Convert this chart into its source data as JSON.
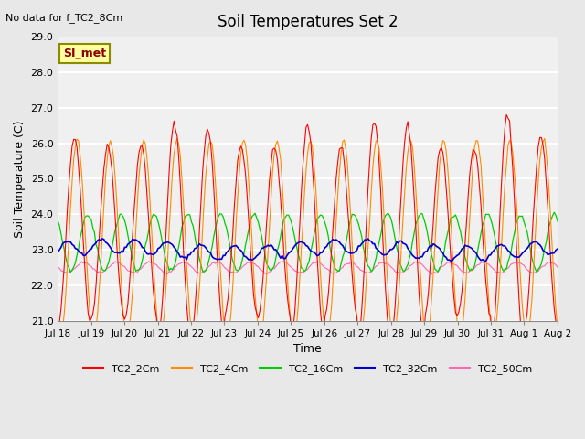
{
  "title": "Soil Temperatures Set 2",
  "subtitle": "No data for f_TC2_8Cm",
  "xlabel": "Time",
  "ylabel": "Soil Temperature (C)",
  "ylim": [
    21.0,
    29.0
  ],
  "yticks": [
    21.0,
    22.0,
    23.0,
    24.0,
    25.0,
    26.0,
    27.0,
    28.0,
    29.0
  ],
  "xtick_labels": [
    "Jul 18",
    "Jul 19",
    "Jul 20",
    "Jul 21",
    "Jul 22",
    "Jul 23",
    "Jul 24",
    "Jul 25",
    "Jul 26",
    "Jul 27",
    "Jul 28",
    "Jul 29",
    "Jul 30",
    "Jul 31",
    "Aug 1",
    "Aug 2"
  ],
  "annotation": "SI_met",
  "annotation_color": "#8B0000",
  "annotation_bg": "#FFFFA0",
  "annotation_border": "#8B8B00",
  "series_colors": {
    "TC2_2Cm": "#FF0000",
    "TC2_4Cm": "#FF8C00",
    "TC2_16Cm": "#00CC00",
    "TC2_32Cm": "#0000CC",
    "TC2_50Cm": "#FF69B4"
  },
  "background_color": "#E8E8E8",
  "plot_bg": "#F0F0F0",
  "grid_color": "#FFFFFF",
  "n_points": 336,
  "days": 16,
  "base_temp": 22.7,
  "amplitude_2cm": 3.3,
  "amplitude_4cm": 2.8,
  "amplitude_16cm": 0.8,
  "amplitude_32cm": 0.2,
  "amplitude_50cm": 0.15,
  "phase_4cm": 0.5,
  "phase_16cm": 2.5,
  "phase_32cm": 5.0,
  "phase_50cm": 8.0
}
